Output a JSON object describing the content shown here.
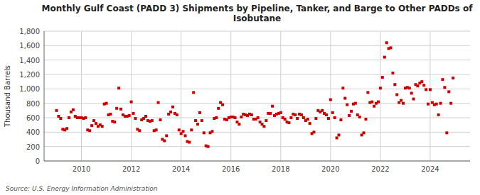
{
  "chart_data": {
    "type": "scatter",
    "title": "Monthly Gulf Coast (PADD 3) Shipments by Pipeline, Tanker, and Barge to Other PADDs of\nIsobutane",
    "y_label": "Thousand Barrels",
    "annotations": [
      "Source: U.S. Energy Information Administration"
    ],
    "color": "#cc0000",
    "marker": "square",
    "grid": true,
    "xlim": [
      2008.5,
      2025.6
    ],
    "xticks": [
      2010,
      2012,
      2014,
      2016,
      2018,
      2020,
      2022,
      2024
    ],
    "ylim": [
      0,
      1800
    ],
    "yticks": [
      0,
      200,
      400,
      600,
      800,
      {
        "value": 1000,
        "label": "1,000"
      },
      {
        "value": 1200,
        "label": "1,200"
      },
      {
        "value": 1400,
        "label": "1,400"
      },
      {
        "value": 1600,
        "label": "1,600"
      },
      {
        "value": 1800,
        "label": "1,800"
      }
    ],
    "x": [
      2009.0,
      2009.083,
      2009.167,
      2009.25,
      2009.333,
      2009.417,
      2009.5,
      2009.583,
      2009.667,
      2009.75,
      2009.833,
      2009.917,
      2010.0,
      2010.083,
      2010.167,
      2010.25,
      2010.333,
      2010.417,
      2010.5,
      2010.583,
      2010.667,
      2010.75,
      2010.833,
      2010.917,
      2011.0,
      2011.083,
      2011.167,
      2011.25,
      2011.333,
      2011.417,
      2011.5,
      2011.583,
      2011.667,
      2011.75,
      2011.833,
      2011.917,
      2012.0,
      2012.083,
      2012.167,
      2012.25,
      2012.333,
      2012.417,
      2012.5,
      2012.583,
      2012.667,
      2012.75,
      2012.833,
      2012.917,
      2013.0,
      2013.083,
      2013.167,
      2013.25,
      2013.333,
      2013.417,
      2013.5,
      2013.583,
      2013.667,
      2013.75,
      2013.833,
      2013.917,
      2014.0,
      2014.083,
      2014.167,
      2014.25,
      2014.333,
      2014.417,
      2014.5,
      2014.583,
      2014.667,
      2014.75,
      2014.833,
      2014.917,
      2015.0,
      2015.083,
      2015.167,
      2015.25,
      2015.333,
      2015.417,
      2015.5,
      2015.583,
      2015.667,
      2015.75,
      2015.833,
      2015.917,
      2016.0,
      2016.083,
      2016.167,
      2016.25,
      2016.333,
      2016.417,
      2016.5,
      2016.583,
      2016.667,
      2016.75,
      2016.833,
      2016.917,
      2017.0,
      2017.083,
      2017.167,
      2017.25,
      2017.333,
      2017.417,
      2017.5,
      2017.583,
      2017.667,
      2017.75,
      2017.833,
      2017.917,
      2018.0,
      2018.083,
      2018.167,
      2018.25,
      2018.333,
      2018.417,
      2018.5,
      2018.583,
      2018.667,
      2018.75,
      2018.833,
      2018.917,
      2019.0,
      2019.083,
      2019.167,
      2019.25,
      2019.333,
      2019.417,
      2019.5,
      2019.583,
      2019.667,
      2019.75,
      2019.833,
      2019.917,
      2020.0,
      2020.083,
      2020.167,
      2020.25,
      2020.333,
      2020.417,
      2020.5,
      2020.583,
      2020.667,
      2020.75,
      2020.833,
      2020.917,
      2021.0,
      2021.083,
      2021.167,
      2021.25,
      2021.333,
      2021.417,
      2021.5,
      2021.583,
      2021.667,
      2021.75,
      2021.833,
      2021.917,
      2022.0,
      2022.083,
      2022.167,
      2022.25,
      2022.333,
      2022.417,
      2022.5,
      2022.583,
      2022.667,
      2022.75,
      2022.833,
      2022.917,
      2023.0,
      2023.083,
      2023.167,
      2023.25,
      2023.333,
      2023.417,
      2023.5,
      2023.583,
      2023.667,
      2023.75,
      2023.833,
      2023.917,
      2024.0,
      2024.083,
      2024.167,
      2024.25,
      2024.333,
      2024.417,
      2024.5,
      2024.583,
      2024.667,
      2024.75,
      2024.833,
      2024.917
    ],
    "values": [
      700,
      620,
      590,
      440,
      430,
      450,
      600,
      680,
      710,
      620,
      600,
      600,
      600,
      590,
      600,
      430,
      420,
      490,
      560,
      520,
      480,
      500,
      480,
      790,
      800,
      640,
      650,
      550,
      540,
      730,
      1010,
      720,
      640,
      620,
      620,
      630,
      820,
      660,
      590,
      440,
      420,
      570,
      590,
      620,
      560,
      550,
      560,
      420,
      430,
      810,
      570,
      300,
      280,
      350,
      650,
      680,
      750,
      660,
      640,
      430,
      380,
      410,
      350,
      270,
      260,
      430,
      950,
      560,
      510,
      670,
      560,
      390,
      210,
      200,
      390,
      410,
      590,
      600,
      730,
      810,
      780,
      580,
      570,
      600,
      610,
      610,
      600,
      540,
      510,
      610,
      650,
      640,
      630,
      650,
      640,
      580,
      580,
      600,
      540,
      510,
      480,
      560,
      660,
      660,
      760,
      630,
      650,
      660,
      670,
      600,
      580,
      540,
      530,
      600,
      650,
      640,
      590,
      650,
      640,
      600,
      560,
      580,
      520,
      380,
      400,
      590,
      700,
      680,
      700,
      660,
      640,
      590,
      850,
      670,
      600,
      320,
      360,
      570,
      1010,
      870,
      780,
      630,
      690,
      790,
      800,
      640,
      610,
      360,
      390,
      580,
      950,
      810,
      820,
      760,
      800,
      820,
      1010,
      1160,
      1440,
      1640,
      1560,
      1570,
      1220,
      1060,
      920,
      810,
      840,
      800,
      1010,
      1020,
      1010,
      940,
      860,
      1060,
      1040,
      1080,
      1100,
      1050,
      990,
      790,
      990,
      810,
      780,
      790,
      640,
      800,
      1130,
      1020,
      390,
      960,
      800,
      1150
    ]
  }
}
